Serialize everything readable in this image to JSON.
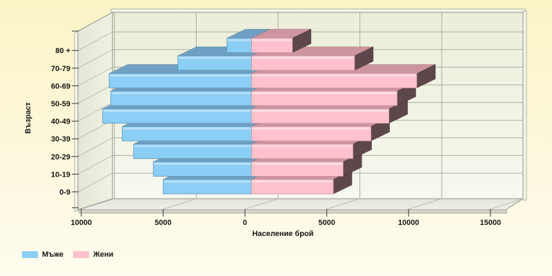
{
  "chart_data": {
    "type": "bar",
    "subtype": "population-pyramid-3d",
    "title": "",
    "categories": [
      "0-9",
      "10-19",
      "20-29",
      "30-39",
      "40-49",
      "50-59",
      "60-69",
      "70-79",
      "80 +"
    ],
    "series": [
      {
        "name": "Мъже",
        "side": "left",
        "color": "#8BCEF6",
        "top_color": "#6FA0C3",
        "values": [
          5400,
          6000,
          7200,
          7900,
          9100,
          8600,
          8700,
          4500,
          1500
        ]
      },
      {
        "name": "Жени",
        "side": "right",
        "color": "#FFC1CC",
        "top_color": "#CD969E",
        "end_cap_color": "#5E474A",
        "values": [
          5000,
          5600,
          6200,
          7300,
          8400,
          8900,
          10100,
          6300,
          2500
        ]
      }
    ],
    "xlabel": "Население брой",
    "ylabel": "Възраст",
    "x_ticks": {
      "labels": [
        "10000",
        "5000",
        "0",
        "5000",
        "10000",
        "15000"
      ],
      "values": [
        -10000,
        -5000,
        0,
        5000,
        10000,
        15000
      ]
    },
    "xlim": [
      -10200,
      15900
    ],
    "grid": true,
    "legend_position": "bottom-left"
  },
  "legend": {
    "items": [
      {
        "label": "Мъже",
        "color": "#8BCEF6"
      },
      {
        "label": "Жени",
        "color": "#FFC1CC"
      }
    ]
  }
}
